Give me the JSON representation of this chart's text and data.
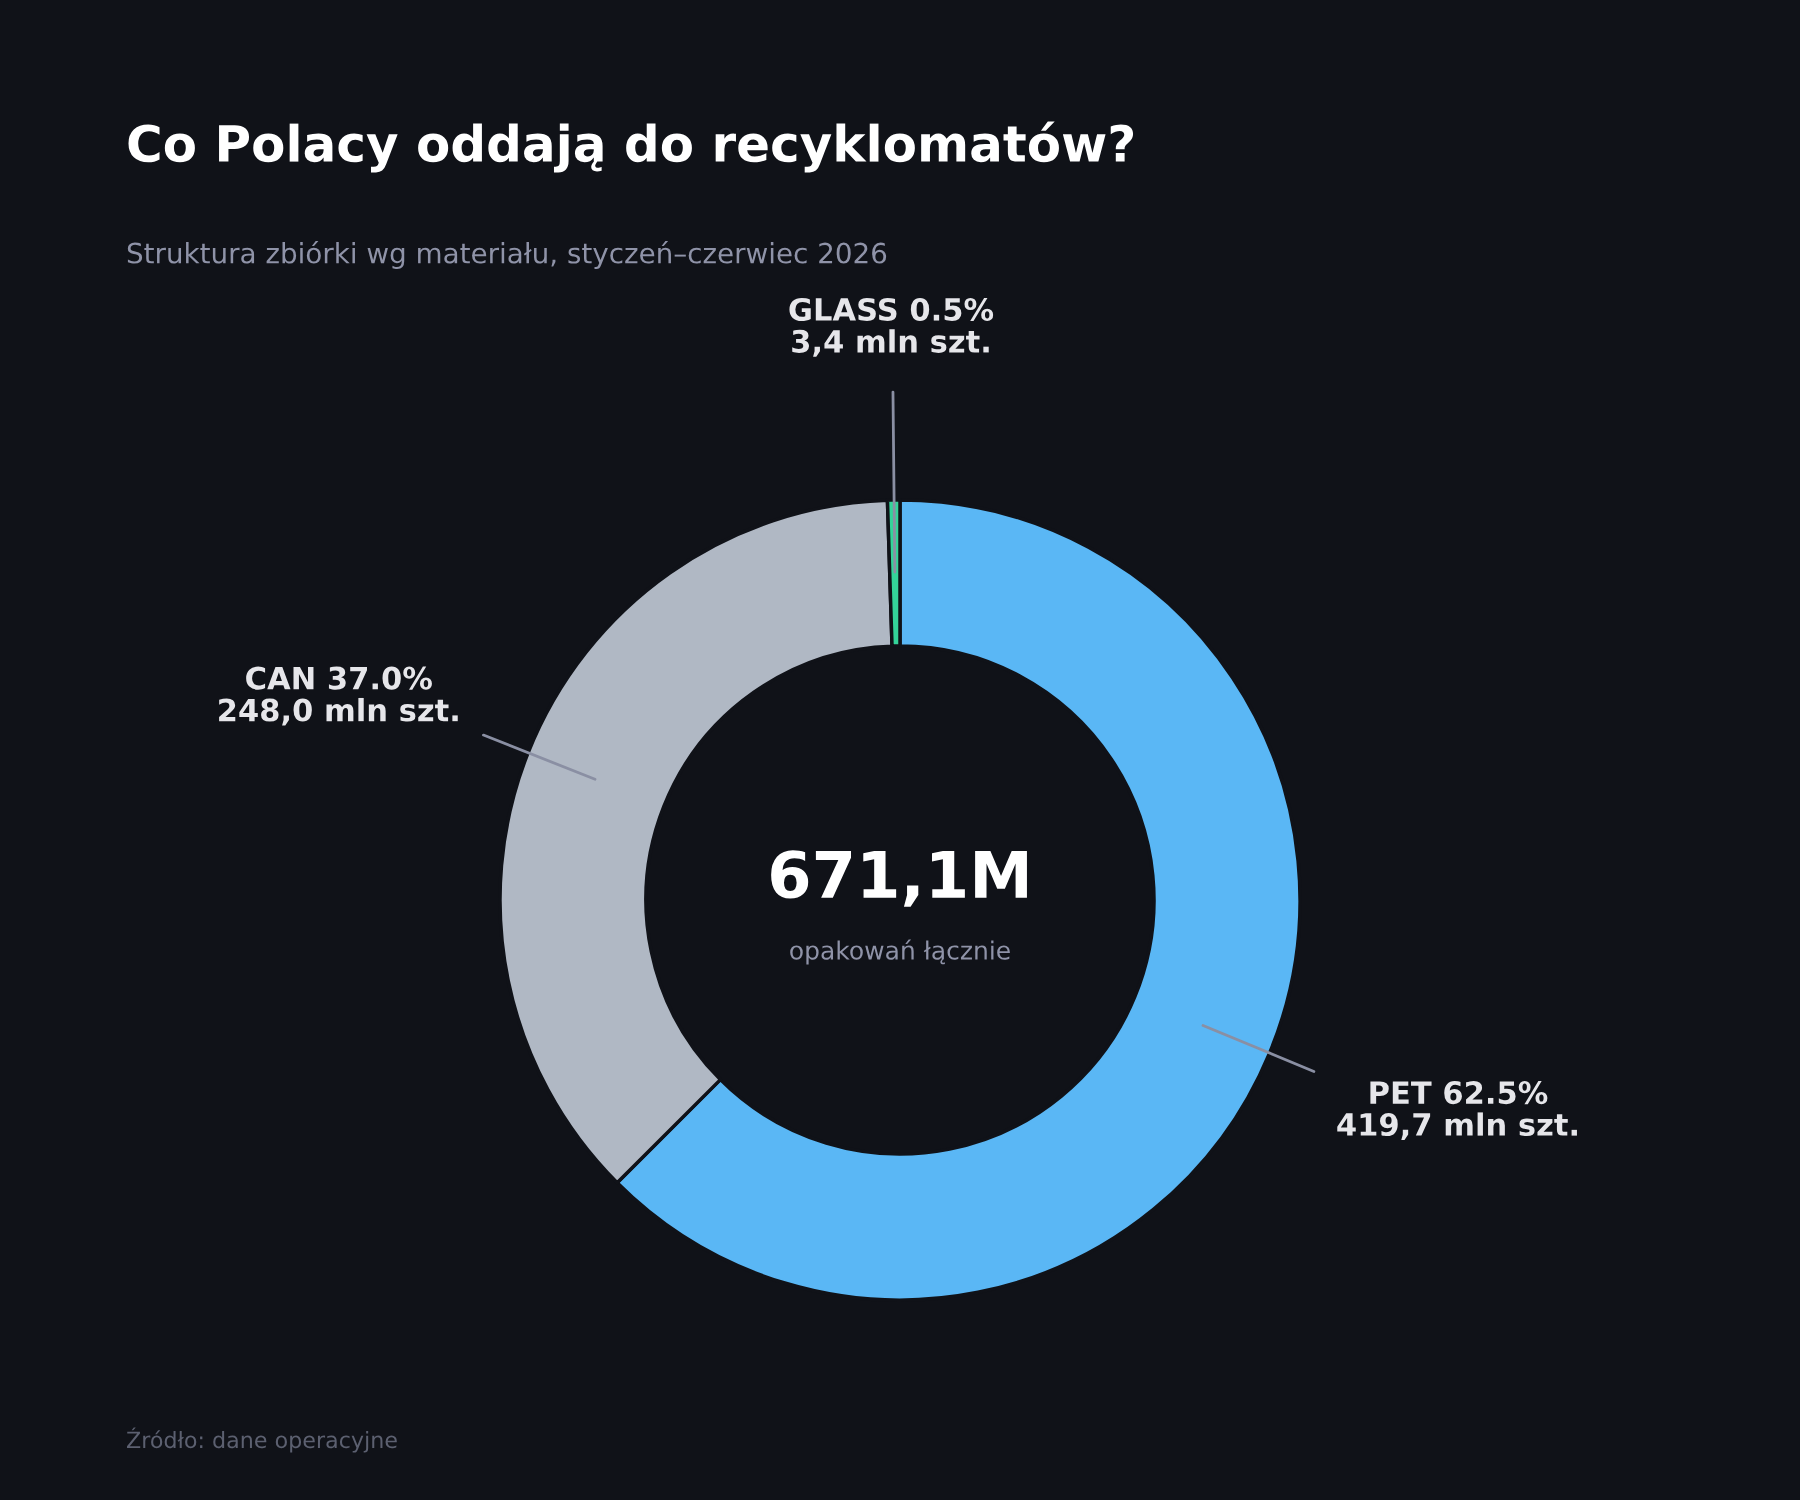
{
  "chart_data": {
    "type": "donut",
    "title": "Co Polacy oddają do recyklomatów?",
    "subtitle": "Struktura zbiórki wg materiału, styczeń–czerwiec 2026",
    "categories": [
      "PET",
      "CAN",
      "GLASS"
    ],
    "values": [
      62.5,
      37.0,
      0.5
    ],
    "colors": [
      "#5ab7f5",
      "#b0b8c4",
      "#34d399"
    ],
    "value_labels": [
      "62.5%\n419,7 mln szt.",
      "37.0%\n248,0 mln szt.",
      "0.5%\n3,4 mln szt."
    ],
    "annotations": [
      "671,1M",
      "opakowań łącznie",
      "Źródło: dane operacyjne"
    ],
    "legend": false
  }
}
